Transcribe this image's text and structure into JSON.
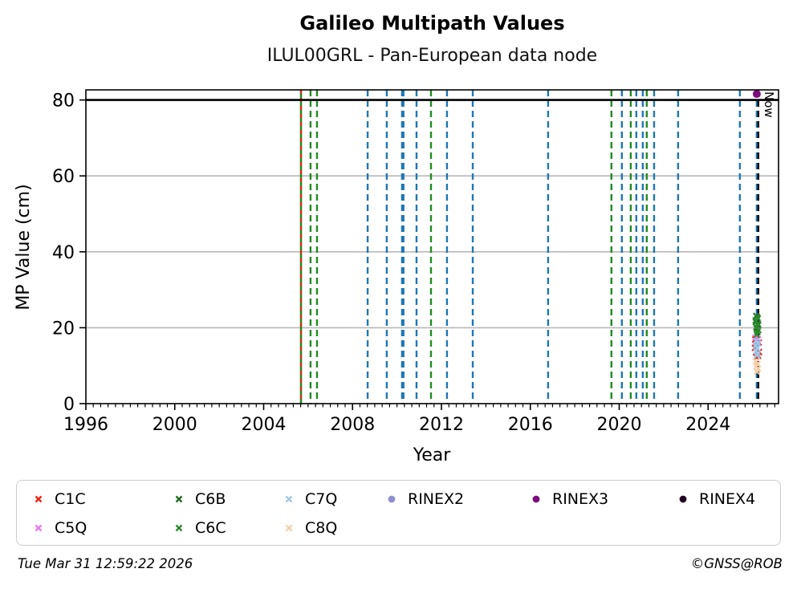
{
  "header": {
    "title": "Galileo Multipath Values",
    "subtitle": "ILUL00GRL - Pan-European data node"
  },
  "footer": {
    "timestamp": "Tue Mar 31 12:59:22 2026",
    "credit": "©GNSS@ROB"
  },
  "chart_data": {
    "type": "scatter",
    "title": "Galileo Multipath Values",
    "subtitle": "ILUL00GRL - Pan-European data node",
    "xlabel": "Year",
    "ylabel": "MP Value (cm)",
    "xlim": [
      1996,
      2027.17
    ],
    "ylim": [
      0,
      80
    ],
    "xticks": [
      1996,
      2000,
      2004,
      2008,
      2012,
      2016,
      2020,
      2024
    ],
    "yticks": [
      0,
      20,
      40,
      60,
      80
    ],
    "minor_tick_years": 0.3333,
    "grid": "horizontal",
    "grid_color": "#b8b8b8",
    "frame_color": "#000000",
    "saturation_line": {
      "y": 80,
      "color": "#000000"
    },
    "now_line": {
      "year": 2026.26,
      "label": "Now",
      "color": "#000000",
      "style": "dashed"
    },
    "event_line_colors": {
      "receiver_blue": "#1f77b4",
      "antenna_green": "#228b22",
      "red": "#ef2010"
    },
    "event_lines": [
      {
        "year": 2005.68,
        "color": "#228b22",
        "style": "solid",
        "width": 2.6
      },
      {
        "year": 2005.68,
        "color": "#ef2010",
        "style": "dashed",
        "width": 2.0,
        "dash": "5 5"
      },
      {
        "year": 2006.11,
        "color": "#228b22",
        "style": "dashed"
      },
      {
        "year": 2006.4,
        "color": "#228b22",
        "style": "dashed"
      },
      {
        "year": 2008.68,
        "color": "#1f77b4",
        "style": "dashed"
      },
      {
        "year": 2009.54,
        "color": "#1f77b4",
        "style": "dashed"
      },
      {
        "year": 2010.26,
        "color": "#1f77b4",
        "style": "dashed",
        "width": 4.2
      },
      {
        "year": 2010.88,
        "color": "#1f77b4",
        "style": "dashed"
      },
      {
        "year": 2011.53,
        "color": "#228b22",
        "style": "dashed"
      },
      {
        "year": 2012.25,
        "color": "#1f77b4",
        "style": "dashed"
      },
      {
        "year": 2013.41,
        "color": "#1f77b4",
        "style": "dashed"
      },
      {
        "year": 2016.8,
        "color": "#1f77b4",
        "style": "dashed"
      },
      {
        "year": 2019.65,
        "color": "#228b22",
        "style": "dashed"
      },
      {
        "year": 2020.12,
        "color": "#1f77b4",
        "style": "dashed"
      },
      {
        "year": 2020.52,
        "color": "#228b22",
        "style": "dashed"
      },
      {
        "year": 2020.77,
        "color": "#1f77b4",
        "style": "dashed"
      },
      {
        "year": 2021.06,
        "color": "#1f77b4",
        "style": "dashed"
      },
      {
        "year": 2021.24,
        "color": "#228b22",
        "style": "dashed"
      },
      {
        "year": 2021.57,
        "color": "#1f77b4",
        "style": "dashed"
      },
      {
        "year": 2022.65,
        "color": "#1f77b4",
        "style": "dashed"
      },
      {
        "year": 2025.43,
        "color": "#1f77b4",
        "style": "dashed"
      },
      {
        "year": 2026.19,
        "color": "#1f77b4",
        "style": "dashed"
      }
    ],
    "series": [
      {
        "name": "C1C",
        "color": "#ef2010",
        "marker": "x",
        "points": [
          [
            2026.12,
            16.9
          ],
          [
            2026.28,
            16.1
          ],
          [
            2026.11,
            14.7
          ],
          [
            2026.29,
            13.6
          ],
          [
            2026.16,
            12.3
          ],
          [
            2026.25,
            12.6
          ]
        ]
      },
      {
        "name": "C5Q",
        "color": "#ee77ee",
        "marker": "x",
        "points": [
          [
            2026.13,
            17.4
          ],
          [
            2026.25,
            17.0
          ]
        ]
      },
      {
        "name": "RINEX2",
        "color": "#8f8fd0",
        "marker": "circle",
        "points": [
          [
            2026.2,
            15.6
          ]
        ]
      },
      {
        "name": "C6B",
        "color": "#1f6b1f",
        "marker": "x",
        "points": [
          [
            2026.17,
            23.1
          ],
          [
            2026.23,
            22.4
          ],
          [
            2026.15,
            21.5
          ],
          [
            2026.25,
            20.7
          ],
          [
            2026.19,
            19.8
          ],
          [
            2026.22,
            18.9
          ]
        ]
      },
      {
        "name": "C6C",
        "color": "#2e8b2e",
        "marker": "x",
        "points": [
          [
            2026.21,
            22.8
          ],
          [
            2026.14,
            21.9
          ],
          [
            2026.24,
            21.1
          ],
          [
            2026.17,
            20.2
          ],
          [
            2026.26,
            19.4
          ],
          [
            2026.19,
            18.2
          ]
        ]
      },
      {
        "name": "C7Q",
        "color": "#9fc9ea",
        "marker": "x",
        "points": [
          [
            2026.18,
            16.5
          ],
          [
            2026.24,
            15.9
          ],
          [
            2026.14,
            15.3
          ],
          [
            2026.21,
            14.6
          ],
          [
            2026.17,
            13.9
          ],
          [
            2026.23,
            13.2
          ],
          [
            2026.2,
            12.7
          ]
        ]
      },
      {
        "name": "C8Q",
        "color": "#f7cfa9",
        "marker": "x",
        "points": [
          [
            2026.16,
            11.1
          ],
          [
            2026.22,
            10.5
          ],
          [
            2026.18,
            9.8
          ],
          [
            2026.24,
            9.2
          ],
          [
            2026.2,
            8.4
          ]
        ]
      },
      {
        "name": "RINEX3",
        "color": "#7d0c7d",
        "marker": "circle",
        "points": [
          [
            2026.19,
            81.6
          ]
        ]
      },
      {
        "name": "RINEX4",
        "color": "#20031f",
        "marker": "circle",
        "points": []
      }
    ],
    "legend_rows": [
      [
        "C1C",
        "C6B",
        "C7Q",
        "RINEX2",
        "RINEX3",
        "RINEX4"
      ],
      [
        "C5Q",
        "C6C",
        "C8Q"
      ]
    ]
  }
}
